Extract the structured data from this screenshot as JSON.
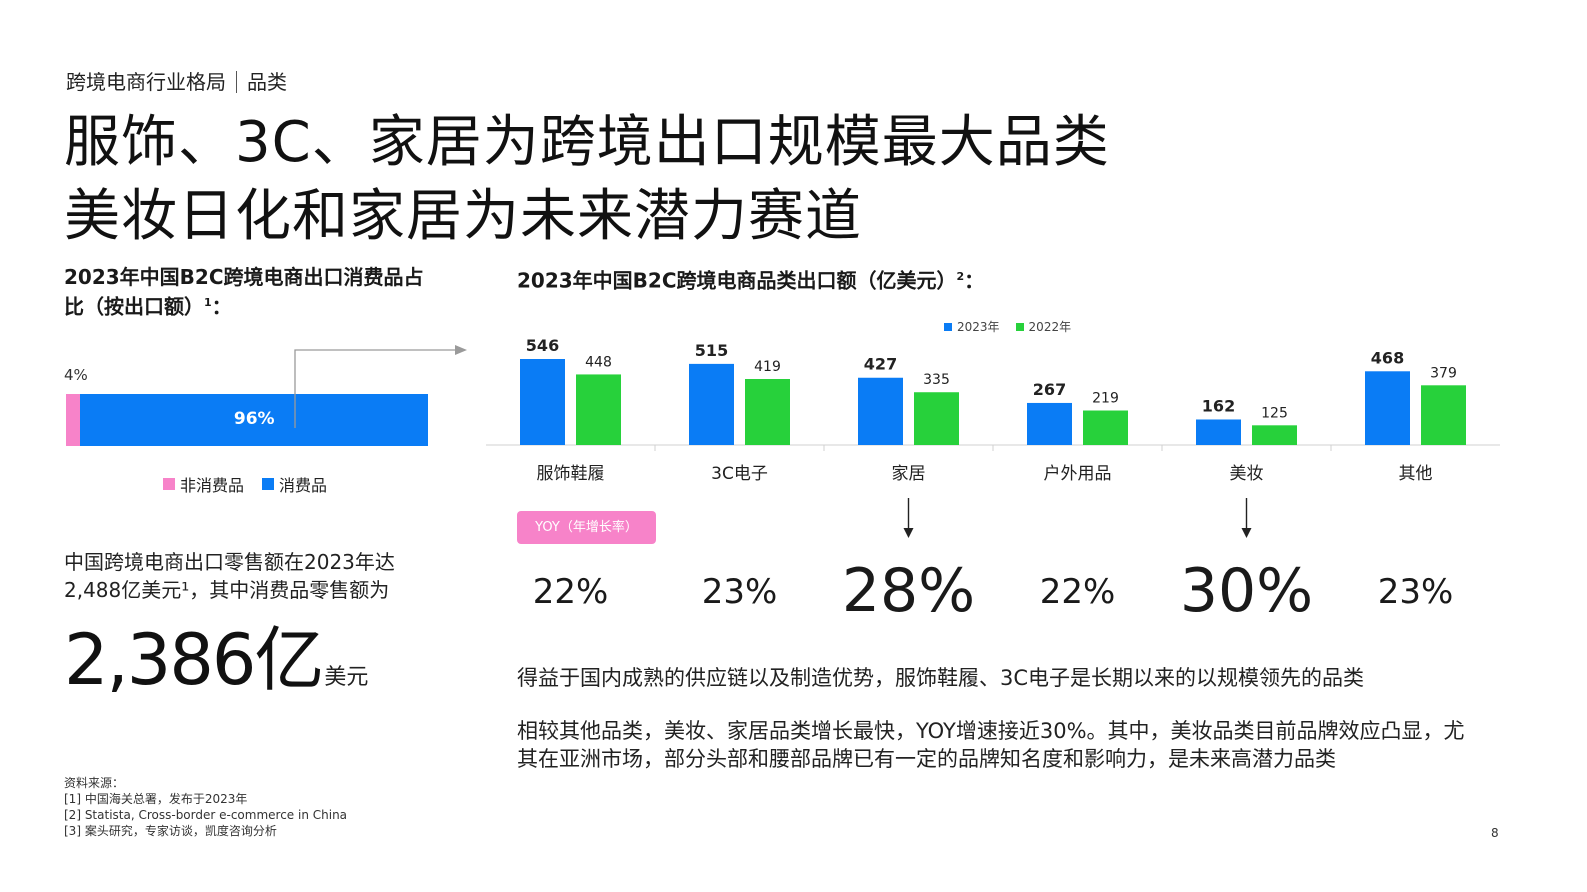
{
  "header": {
    "breadcrumb_section": "跨境电商行业格局",
    "breadcrumb_sub": "品类",
    "title_line1": "服饰、3C、家居为跨境出口规模最大品类",
    "title_line2": "美妆日化和家居为未来潜力赛道"
  },
  "left": {
    "chart_title_line1": "2023年中国B2C跨境电商出口消费品占",
    "chart_title_line2": "比（按出口额）",
    "chart_title_sup": "1",
    "chart_title_colon": "：",
    "legend": [
      "非消费品",
      "消费品"
    ],
    "retail_line1": "中国跨境电商出口零售额在2023年达",
    "retail_line2": "2,488亿美元¹，其中消费品零售额为",
    "retail_big": "2,386亿",
    "retail_unit": "美元"
  },
  "right": {
    "chart_title": "2023年中国B2C跨境电商品类出口额（亿美元）",
    "chart_title_sup": "2",
    "chart_title_colon": "：",
    "yoy_badge": "YOY（年增长率）",
    "yoy": [
      "22%",
      "23%",
      "28%",
      "22%",
      "30%",
      "23%"
    ],
    "yoy_highlight": [
      false,
      false,
      true,
      false,
      true,
      false
    ],
    "para1": "得益于国内成熟的供应链以及制造优势，服饰鞋履、3C电子是长期以来的以规模领先的品类",
    "para2_line1": "相较其他品类，美妆、家居品类增长最快，YOY增速接近30%。其中，美妆品类目前品牌效应凸显，尤",
    "para2_line2": "其在亚洲市场，部分头部和腰部品牌已有一定的品牌知名度和影响力，是未来高潜力品类"
  },
  "footer": {
    "sources_title": "资料来源：",
    "sources": [
      "[1] 中国海关总署，发布于2023年",
      "[2] Statista, Cross-border e-commerce in China",
      "[3] 案头研究，专家访谈，凯度咨询分析"
    ],
    "page_number": "8"
  },
  "colors": {
    "blue": "#0a7cf5",
    "green": "#27d13b",
    "pink": "#f783c9"
  },
  "chart_data": [
    {
      "type": "bar",
      "orientation": "horizontal-stacked",
      "title": "2023年中国B2C跨境电商出口消费品占比（按出口额）",
      "categories": [
        "非消费品",
        "消费品"
      ],
      "values": [
        4,
        96
      ],
      "labels": [
        "4%",
        "96%"
      ],
      "colors": [
        "#f783c9",
        "#0a7cf5"
      ],
      "legend_position": "bottom"
    },
    {
      "type": "bar",
      "title": "2023年中国B2C跨境电商品类出口额（亿美元）",
      "categories": [
        "服饰鞋履",
        "3C电子",
        "家居",
        "户外用品",
        "美妆",
        "其他"
      ],
      "series": [
        {
          "name": "2023年",
          "values": [
            546,
            515,
            427,
            267,
            162,
            468
          ],
          "color": "#0a7cf5"
        },
        {
          "name": "2022年",
          "values": [
            448,
            419,
            335,
            219,
            125,
            379
          ],
          "color": "#27d13b"
        }
      ],
      "ylim": [
        0,
        600
      ],
      "grid": false,
      "legend_position": "top-right"
    }
  ]
}
